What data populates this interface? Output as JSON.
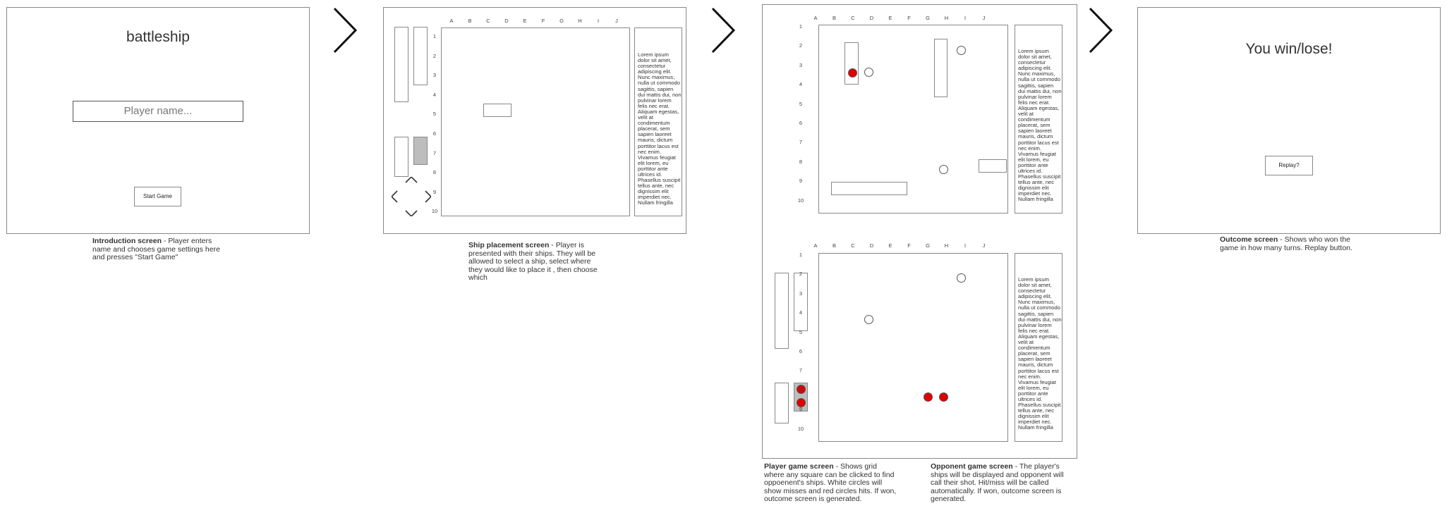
{
  "intro": {
    "title": "battleship",
    "name_placeholder": "Player name...",
    "start_button": "Start Game",
    "caption_title": "Introduction screen",
    "caption_text": " - Player enters name and chooses game settings here and presses \"Start Game\""
  },
  "placement": {
    "caption_title": "Ship placement screen",
    "caption_text": " - Player is presented with their ships. They will be allowed to select a ship, select where they would like to place it , then choose which"
  },
  "game": {
    "player_caption_title": "Player game screen",
    "player_caption_text": " - Shows grid where any square can be clicked to find oppoenent's ships. White circles will show misses and red circles hits. If won, outcome screen is generated.",
    "opponent_caption_title": "Opponent game screen",
    "opponent_caption_text": " - The player's ships will be displayed and opponent will call their shot. Hit/miss will be called automatically. If won, outcome screen is generated."
  },
  "outcome": {
    "title": "You win/lose!",
    "replay_button": "Replay?",
    "caption_title": "Outcome screen",
    "caption_text": " - Shows who won the game in how many turns. Replay button."
  },
  "grid": {
    "columns": [
      "A",
      "B",
      "C",
      "D",
      "E",
      "F",
      "G",
      "H",
      "I",
      "J"
    ],
    "rows": [
      "1",
      "2",
      "3",
      "4",
      "5",
      "6",
      "7",
      "8",
      "9",
      "10"
    ]
  },
  "side_text": "Lorem ipsum dolor sit amet, consectetur adipiscing elit. Nunc maximus, nulla ut commodo sagittis, sapien dui mattis dui, non pulvinar lorem felis nec erat. Aliquam egestas, velit at condimentum placerat, sem sapien laoreet mauris, dictum porttitor lacus est nec enim. Vivamus feugiat elit lorem, eu porttitor ante ultrices id. Phasellus suscipit tellus ante, nec dignissim elit imperdiet nec. Nullam fringilla",
  "colors": {
    "hit": "#e00000",
    "selected_ship": "#bdbdbd",
    "border": "#888888"
  }
}
